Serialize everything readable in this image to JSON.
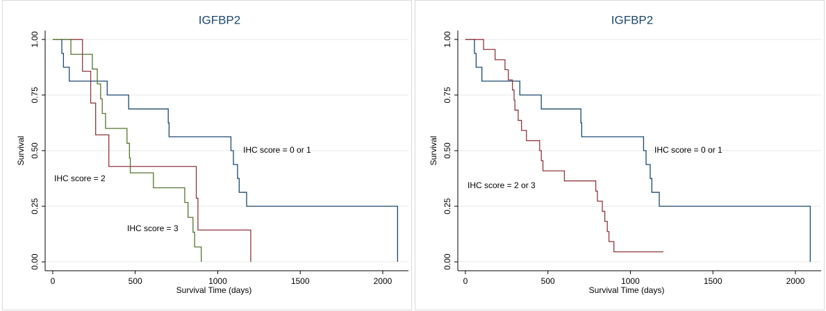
{
  "chart_data": [
    {
      "type": "step",
      "title": "IGFBP2",
      "xlabel": "Survival Time (days)",
      "ylabel": "Survival",
      "xlim": [
        -46,
        2156
      ],
      "ylim": [
        -0.04,
        1.04
      ],
      "xticks": [
        0,
        500,
        1000,
        1500,
        2000
      ],
      "yticks": [
        {
          "value": 0,
          "label": "0.00"
        },
        {
          "value": 0.25,
          "label": "0.25"
        },
        {
          "value": 0.5,
          "label": "0.50"
        },
        {
          "value": 0.75,
          "label": "0.75"
        },
        {
          "value": 1,
          "label": "1.00"
        }
      ],
      "grid": true,
      "series": [
        {
          "name": "IHC score = 0 or 1",
          "color": "#1a476f",
          "x": [
            0,
            55,
            65,
            100,
            330,
            460,
            700,
            705,
            1080,
            1095,
            1120,
            1130,
            1175,
            2090
          ],
          "values": [
            1,
            0.9375,
            0.875,
            0.8125,
            0.75,
            0.6875,
            0.625,
            0.5625,
            0.5,
            0.4375,
            0.375,
            0.3125,
            0.25,
            0
          ]
        },
        {
          "name": "IHC score = 2",
          "color": "#90353b",
          "x": [
            0,
            180,
            230,
            260,
            340,
            870,
            880,
            1200
          ],
          "values": [
            1,
            0.857,
            0.714,
            0.571,
            0.429,
            0.286,
            0.143,
            0
          ]
        },
        {
          "name": "IHC score = 3",
          "color": "#55752f",
          "x": [
            0,
            110,
            240,
            270,
            290,
            300,
            320,
            450,
            465,
            470,
            610,
            800,
            820,
            850,
            860,
            900
          ],
          "values": [
            1,
            0.933,
            0.867,
            0.8,
            0.733,
            0.667,
            0.6,
            0.533,
            0.467,
            0.4,
            0.333,
            0.267,
            0.2,
            0.133,
            0.067,
            0
          ]
        }
      ]
    },
    {
      "type": "step",
      "title": "IGFBP2",
      "xlabel": "Survival Time (days)",
      "ylabel": "Survival",
      "xlim": [
        -46,
        2156
      ],
      "ylim": [
        -0.04,
        1.04
      ],
      "xticks": [
        0,
        500,
        1000,
        1500,
        2000
      ],
      "yticks": [
        {
          "value": 0,
          "label": "0.00"
        },
        {
          "value": 0.25,
          "label": "0.25"
        },
        {
          "value": 0.5,
          "label": "0.50"
        },
        {
          "value": 0.75,
          "label": "0.75"
        },
        {
          "value": 1,
          "label": "1.00"
        }
      ],
      "grid": true,
      "series": [
        {
          "name": "IHC score = 0 or 1",
          "color": "#1a476f",
          "x": [
            0,
            55,
            65,
            100,
            330,
            460,
            700,
            705,
            1080,
            1095,
            1120,
            1130,
            1175,
            2090
          ],
          "values": [
            1,
            0.9375,
            0.875,
            0.8125,
            0.75,
            0.6875,
            0.625,
            0.5625,
            0.5,
            0.4375,
            0.375,
            0.3125,
            0.25,
            0
          ]
        },
        {
          "name": "IHC score = 2 or 3",
          "color": "#90353b",
          "x": [
            0,
            110,
            180,
            240,
            260,
            285,
            295,
            300,
            320,
            340,
            370,
            450,
            460,
            470,
            600,
            790,
            800,
            830,
            845,
            860,
            870,
            900,
            1200
          ],
          "values": [
            1,
            0.955,
            0.909,
            0.864,
            0.818,
            0.773,
            0.727,
            0.682,
            0.636,
            0.591,
            0.545,
            0.5,
            0.455,
            0.409,
            0.364,
            0.318,
            0.273,
            0.227,
            0.182,
            0.136,
            0.091,
            0.045,
            0.045
          ]
        }
      ]
    }
  ]
}
